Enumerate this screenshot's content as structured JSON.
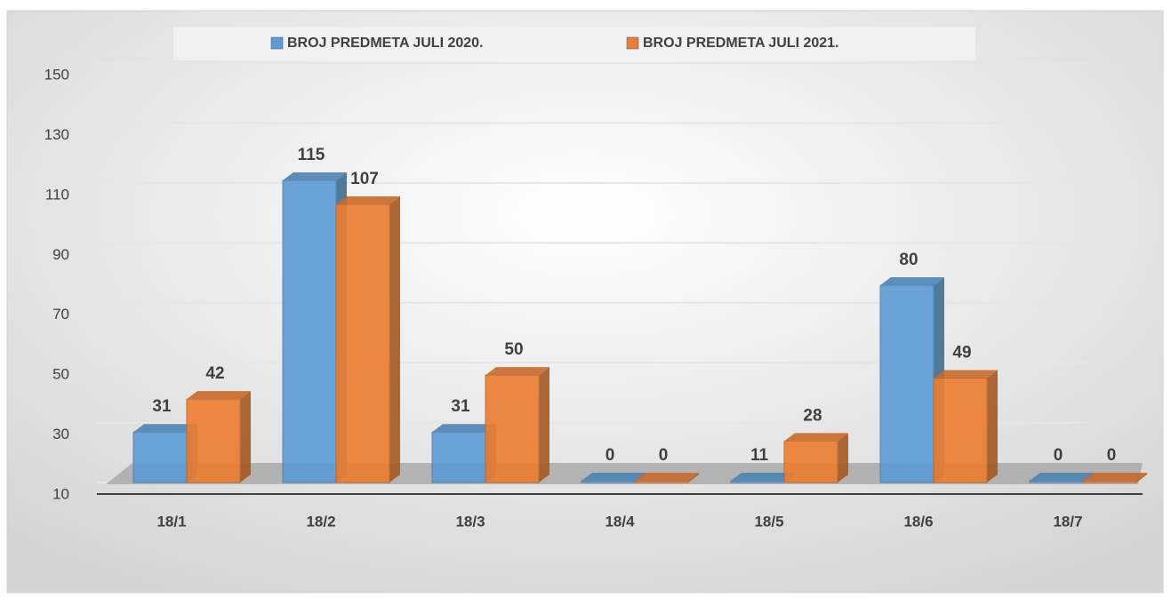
{
  "chart_data": {
    "type": "bar3d",
    "categories": [
      "18/1",
      "18/2",
      "18/3",
      "18/4",
      "18/5",
      "18/6",
      "18/7"
    ],
    "series": [
      {
        "name": "BROJ PREDMETA JULI 2020.",
        "color": "#5b9bd5",
        "values": [
          31,
          115,
          31,
          0,
          11,
          80,
          0
        ]
      },
      {
        "name": "BROJ PREDMETA JULI 2021.",
        "color": "#ed7d31",
        "values": [
          42,
          107,
          50,
          0,
          28,
          49,
          0
        ]
      }
    ],
    "ylim": [
      10,
      150
    ],
    "yticks": [
      10,
      30,
      50,
      70,
      90,
      110,
      130,
      150
    ],
    "grid": true,
    "legend": "top"
  }
}
